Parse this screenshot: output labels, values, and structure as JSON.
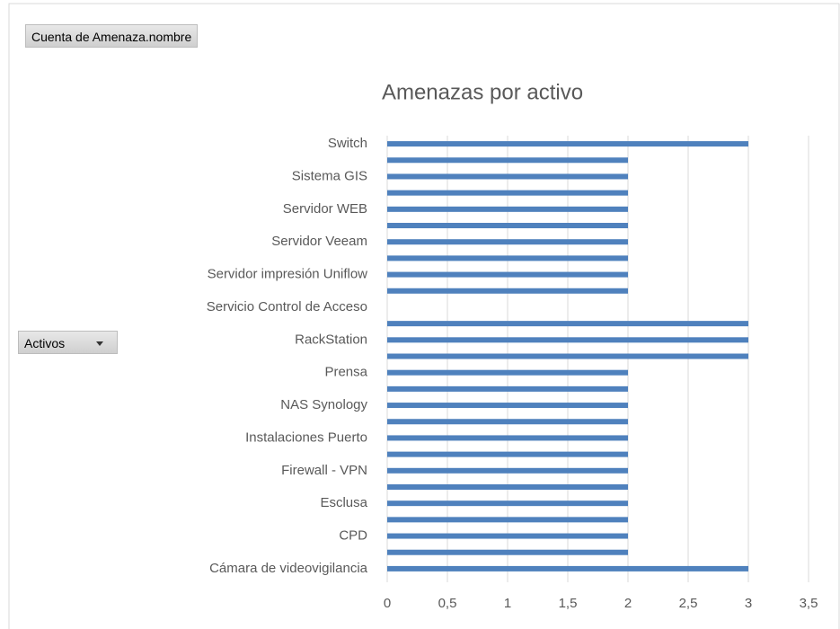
{
  "field_buttons": {
    "values": "Cuenta de Amenaza.nombre",
    "rows": "Activos"
  },
  "chart_data": {
    "type": "bar",
    "orientation": "horizontal",
    "title": "Amenazas por activo",
    "categories": [
      "Cámara de videovigilancia",
      null,
      "CPD",
      null,
      "Esclusa",
      null,
      "Firewall - VPN",
      null,
      "Instalaciones Puerto",
      null,
      "NAS Synology",
      null,
      "Prensa",
      null,
      "RackStation",
      null,
      "Servicio Control de Acceso",
      null,
      "Servidor impresión Uniflow",
      null,
      "Servidor Veeam",
      null,
      "Servidor WEB",
      null,
      "Sistema GIS",
      null,
      "Switch"
    ],
    "values": [
      3,
      2,
      2,
      2,
      2,
      2,
      2,
      2,
      2,
      2,
      2,
      2,
      2,
      3,
      3,
      3,
      0,
      2,
      2,
      2,
      2,
      2,
      2,
      2,
      2,
      2,
      3
    ],
    "color": "#4f81bd",
    "xlim": [
      0,
      3.5
    ],
    "xticks": [
      0,
      {
        "value": 0.5,
        "label": "0,5"
      },
      1,
      {
        "value": 1.5,
        "label": "1,5"
      },
      2,
      {
        "value": 2.5,
        "label": "2,5"
      },
      3,
      {
        "value": 3.5,
        "label": "3,5"
      }
    ],
    "grid": true
  }
}
